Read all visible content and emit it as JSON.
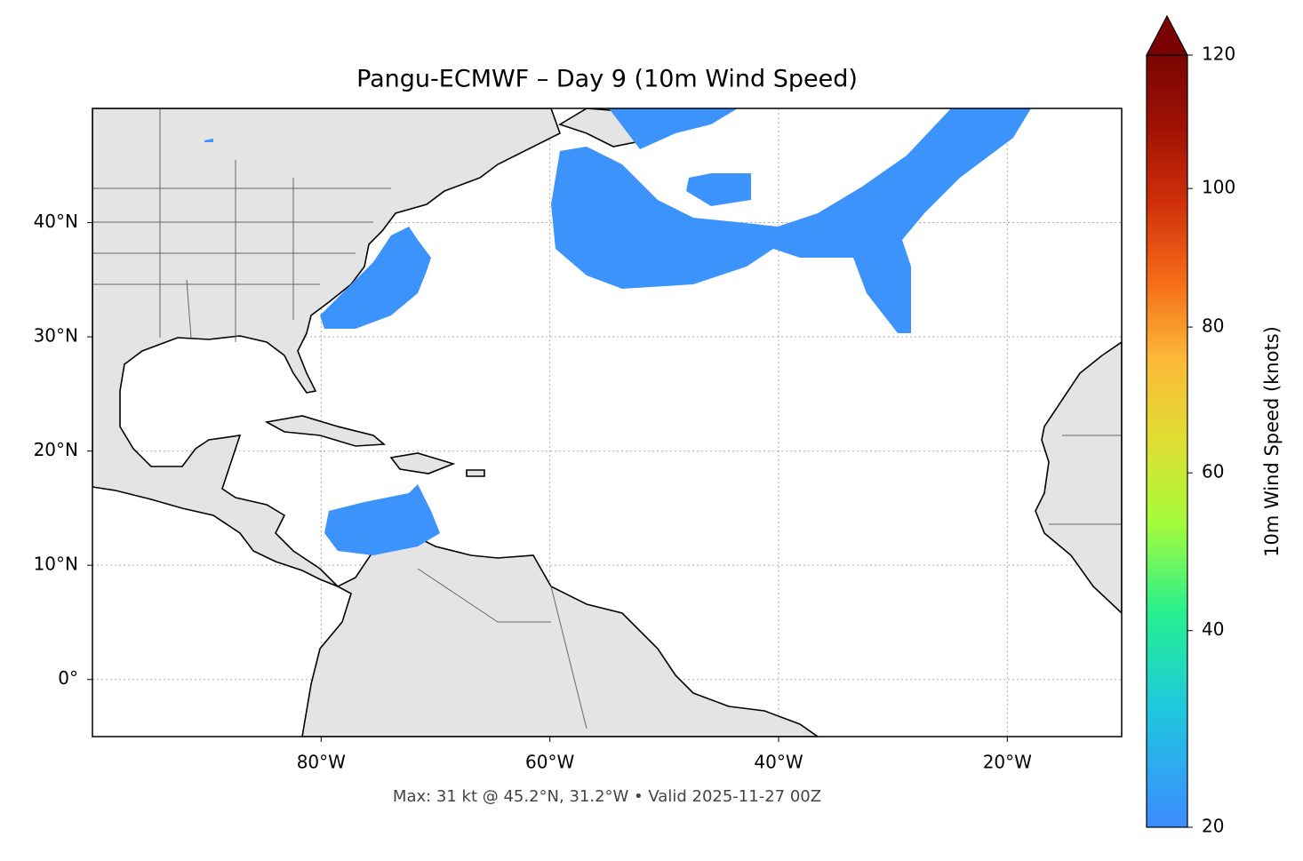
{
  "map": {
    "title": "Pangu-ECMWF – Day 9 (10m Wind Speed)",
    "footer": "Max: 31 kt @ 45.2°N, 31.2°W • Valid 2025-11-27 00Z",
    "xlim": [
      -100,
      -10
    ],
    "ylim": [
      -5,
      50
    ],
    "xticks": [
      {
        "value": -80,
        "label": "80°W"
      },
      {
        "value": -60,
        "label": "60°W"
      },
      {
        "value": -40,
        "label": "40°W"
      },
      {
        "value": -20,
        "label": "20°W"
      }
    ],
    "yticks": [
      {
        "value": 0,
        "label": "0°"
      },
      {
        "value": 10,
        "label": "10°N"
      },
      {
        "value": 20,
        "label": "20°N"
      },
      {
        "value": 30,
        "label": "30°N"
      },
      {
        "value": 40,
        "label": "40°N"
      }
    ],
    "grid": true,
    "colorbar": {
      "label": "10m Wind Speed (knots)",
      "lim": [
        20,
        120
      ],
      "ticks": [
        20,
        40,
        60,
        80,
        100,
        120
      ],
      "gamma": 0.85,
      "extend": "max",
      "colors": [
        "#3d8bff",
        "#1fc8de",
        "#26f08e",
        "#a4fc3b",
        "#e0dd33",
        "#fbb938",
        "#f56b18",
        "#d0300a",
        "#a01304",
        "#7a0403"
      ]
    }
  }
}
